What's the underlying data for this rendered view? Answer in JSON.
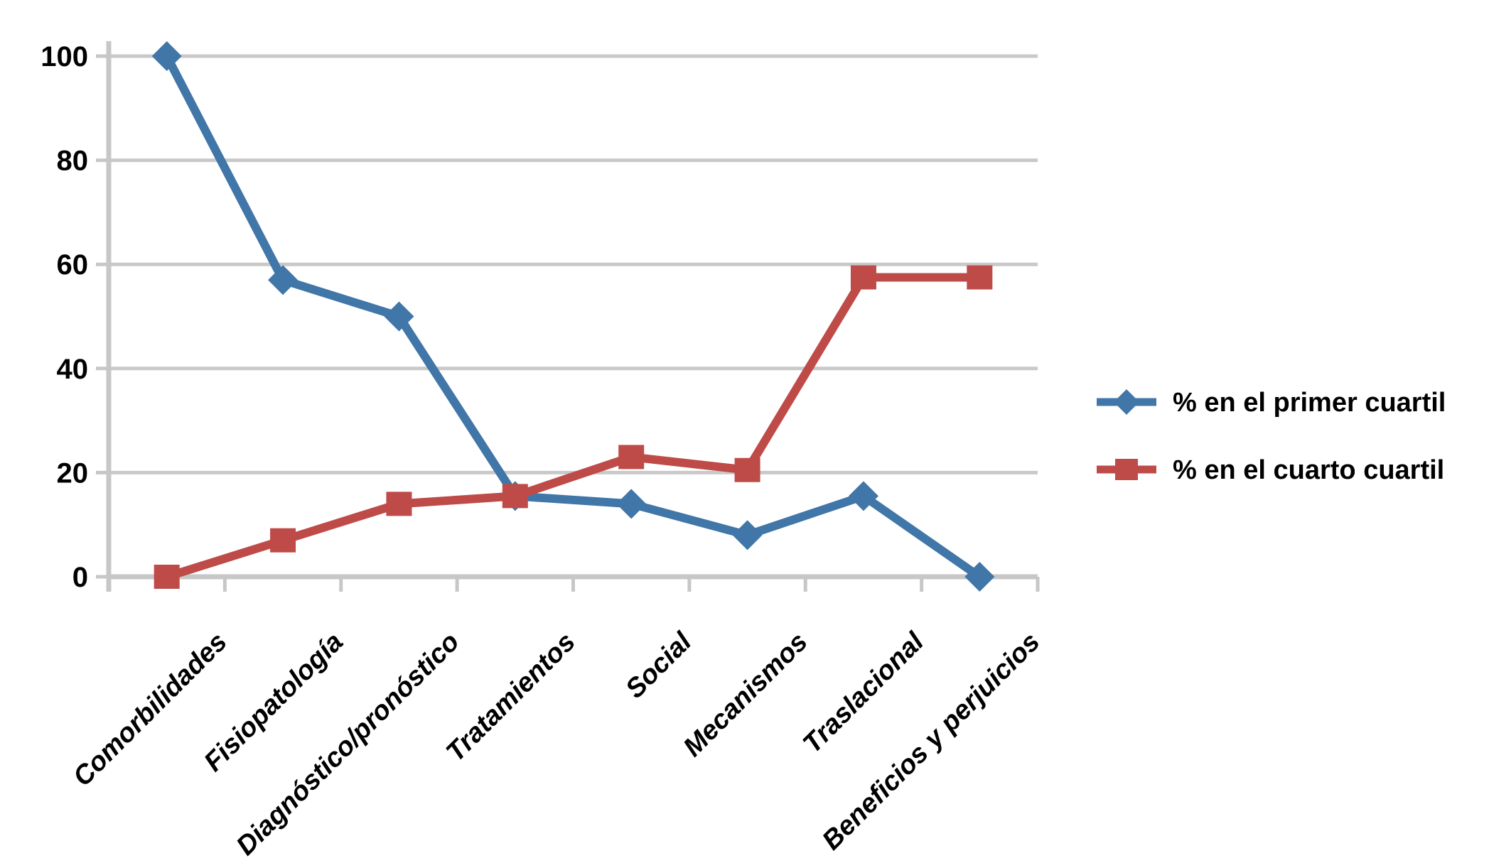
{
  "chart_data": {
    "type": "line",
    "title": "",
    "xlabel": "",
    "ylabel": "",
    "categories": [
      "Comorbilidades",
      "Fisiopatología",
      "Diagnóstico/pronóstico",
      "Tratamientos",
      "Social",
      "Mecanismos",
      "Traslacional",
      "Beneficios y perjuicios"
    ],
    "series": [
      {
        "name": "% en el primer cuartil",
        "marker": "diamond",
        "color": "#4076A8",
        "values": [
          100,
          57,
          50,
          15.5,
          14,
          8,
          15.5,
          0
        ]
      },
      {
        "name": "% en el cuarto cuartil",
        "marker": "square",
        "color": "#BE4B48",
        "values": [
          0,
          7,
          14,
          15.5,
          23,
          20.5,
          57.5,
          57.5
        ]
      }
    ],
    "ylim": [
      0,
      100
    ],
    "y_ticks": [
      0,
      20,
      40,
      60,
      80,
      100
    ],
    "grid": true,
    "legend_position": "right",
    "grid_color": "#C9C9C9",
    "axis_color": "#C7C7C7",
    "text_color": "#000000",
    "background_color": "#FFFFFF"
  }
}
